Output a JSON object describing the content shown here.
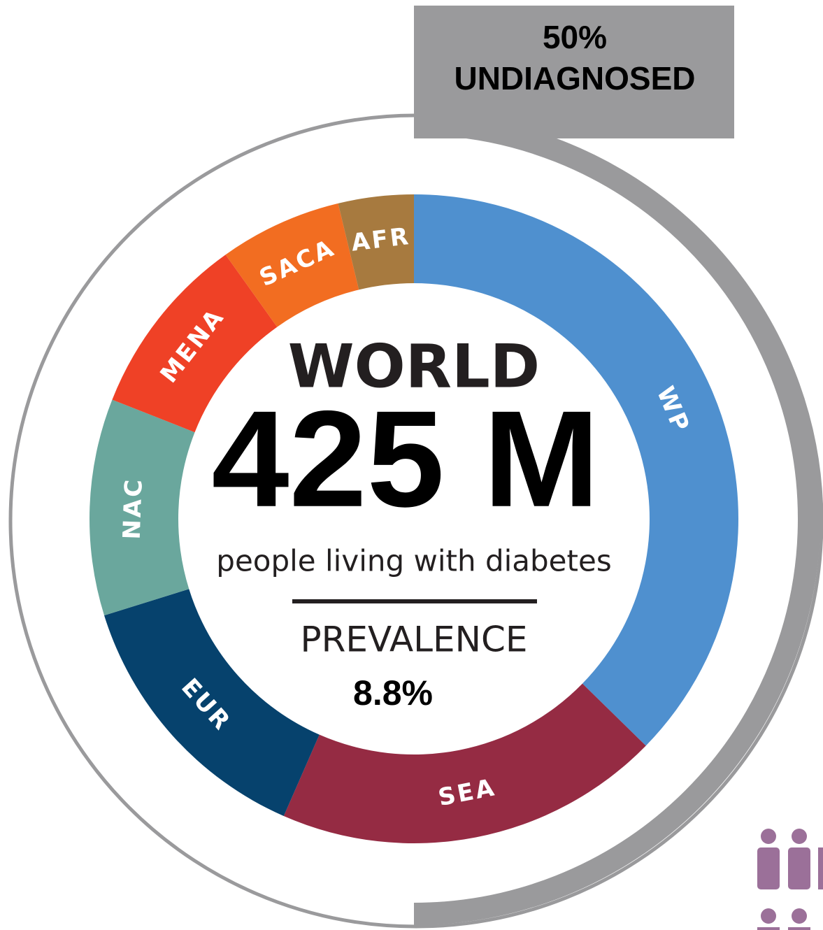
{
  "chart_data": {
    "type": "donut",
    "categories": [
      "WP",
      "SEA",
      "EUR",
      "NAC",
      "MENA",
      "SACA",
      "AFR"
    ],
    "values": [
      159,
      82,
      58,
      46,
      39,
      26,
      16
    ],
    "colors": [
      "#4f90cf",
      "#952b43",
      "#06426d",
      "#6aa79d",
      "#ef4126",
      "#f26d21",
      "#a77a3f"
    ],
    "center_title": "WORLD",
    "center_value": "425 M",
    "center_subtitle": "people living with diabetes",
    "prevalence_label": "PREVALENCE",
    "prevalence_value": "8.8%",
    "undiagnosed": {
      "value": 50,
      "label": "50%"
    },
    "undiagnosed_label": "UNDIAGNOSED"
  }
}
